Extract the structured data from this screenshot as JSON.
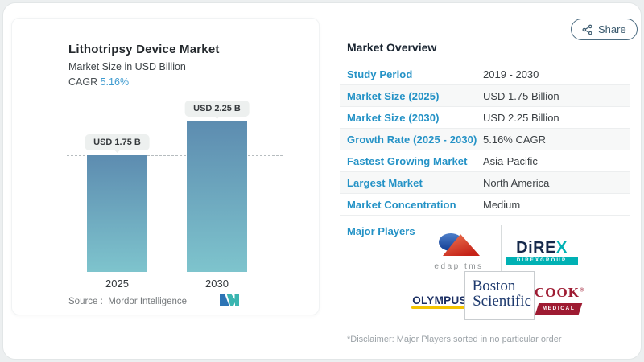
{
  "colors": {
    "accent_blue": "#2492c6",
    "bar_gradient_top": "#5d8cb0",
    "bar_gradient_bottom": "#7ec4cd",
    "direx_teal": "#00b1b4",
    "navy": "#1b2f63",
    "cook_maroon": "#9e1b32",
    "olympus_yellow": "#f3c400"
  },
  "share": {
    "label": "Share"
  },
  "chart": {
    "title": "Lithotripsy Device Market",
    "subtitle": "Market Size in USD Billion",
    "cagr_label": "CAGR",
    "cagr_value": "5.16%",
    "source_label": "Source :",
    "source_value": "Mordor Intelligence"
  },
  "chart_data": {
    "type": "bar",
    "categories": [
      "2025",
      "2030"
    ],
    "values": [
      1.75,
      2.25
    ],
    "value_labels": [
      "USD 1.75 B",
      "USD 2.25 B"
    ],
    "title": "Lithotripsy Device Market",
    "ylabel": "Market Size in USD Billion",
    "ylim": [
      0,
      2.55
    ],
    "gridline_at": 1.75,
    "grid": "single dashed reference line at first value",
    "legend": "none"
  },
  "overview": {
    "heading": "Market Overview",
    "rows": [
      {
        "label": "Study Period",
        "value": "2019 - 2030"
      },
      {
        "label": "Market Size (2025)",
        "value": "USD 1.75 Billion"
      },
      {
        "label": "Market Size (2030)",
        "value": "USD 2.25 Billion"
      },
      {
        "label": "Growth Rate (2025 - 2030)",
        "value": "5.16% CAGR"
      },
      {
        "label": "Fastest Growing Market",
        "value": "Asia-Pacific"
      },
      {
        "label": "Largest Market",
        "value": "North America"
      },
      {
        "label": "Market Concentration",
        "value": "Medium"
      }
    ],
    "major_players_label": "Major Players",
    "disclaimer": "*Disclaimer: Major Players sorted in no particular order"
  },
  "logos": {
    "edap": {
      "text": "edap tms"
    },
    "direx": {
      "main": "DiRE",
      "x": "X",
      "sub": "DIREXGROUP"
    },
    "olympus": {
      "text": "OLYMPUS"
    },
    "boston": {
      "line1": "Boston",
      "line2": "Scientific"
    },
    "cook": {
      "main": "COOK",
      "reg": "®",
      "sub": "MEDICAL"
    }
  }
}
